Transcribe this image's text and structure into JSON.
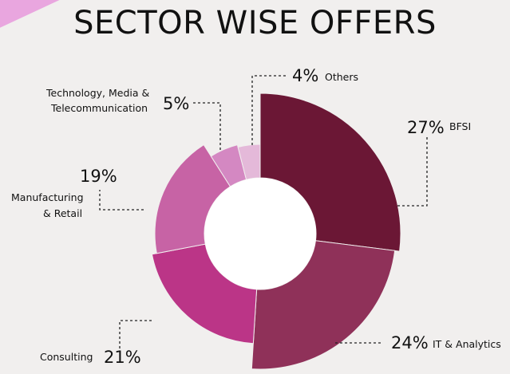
{
  "title": "SECTOR WISE OFFERS",
  "chart_data": {
    "type": "pie",
    "variant": "donut with varying radii",
    "title": "SECTOR WISE OFFERS",
    "slices": [
      {
        "label": "BFSI",
        "value": 27,
        "pct_text": "27%",
        "color": "#6b1735"
      },
      {
        "label": "IT & Analytics",
        "value": 24,
        "pct_text": "24%",
        "color": "#8f3159"
      },
      {
        "label": "Consulting",
        "value": 21,
        "pct_text": "21%",
        "color": "#bb3587"
      },
      {
        "label": "Manufacturing & Retail",
        "value": 19,
        "pct_text": "19%",
        "color": "#c763a5"
      },
      {
        "label": "Technology, Media & Telecommunication",
        "value": 5,
        "pct_text": "5%",
        "color": "#d488c2"
      },
      {
        "label": "Others",
        "value": 4,
        "pct_text": "4%",
        "color": "#e4b9d9"
      }
    ]
  }
}
